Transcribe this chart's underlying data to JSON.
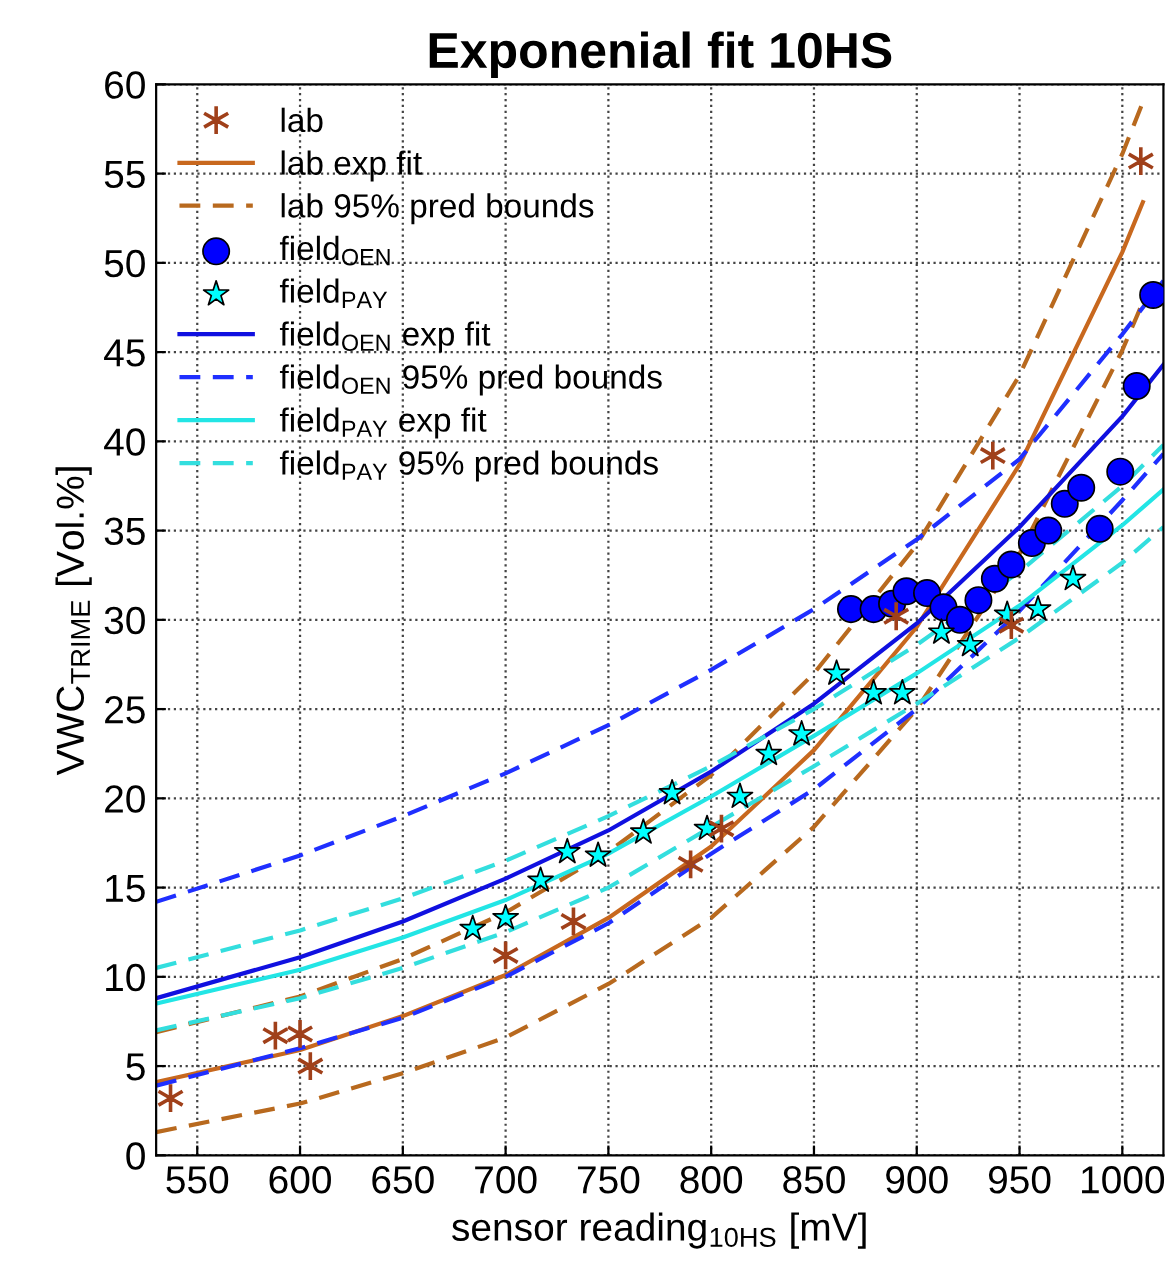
{
  "chart_data": {
    "type": "scatter",
    "title": "Exponenial fit 10HS",
    "xlabel": "sensor reading$_{10HS}$ [mV]",
    "ylabel": "VWC$_{TRIME}$ [Vol.%]",
    "xlim": [
      530,
      1020
    ],
    "xticks": [
      550,
      600,
      650,
      700,
      750,
      800,
      850,
      900,
      950,
      1000
    ],
    "ylim": [
      0,
      60
    ],
    "yticks": [
      0,
      5,
      10,
      15,
      20,
      25,
      30,
      35,
      40,
      45,
      50,
      55,
      60
    ],
    "grid": true,
    "legend": "top left",
    "series": [
      {
        "name": "lab",
        "type": "scatter",
        "marker": "cross",
        "color": "#a0401a",
        "x": [
          537,
          588,
          600,
          605,
          700,
          733,
          790,
          805,
          890,
          937,
          946,
          1009
        ],
        "values": [
          3.2,
          6.7,
          6.8,
          5.0,
          11.2,
          13.1,
          16.3,
          18.3,
          30.2,
          39.2,
          29.7,
          55.7
        ]
      },
      {
        "name": "lab exp fit",
        "type": "line",
        "line_style": "solid",
        "marker": "none",
        "color": "#c8681e",
        "x": [
          530,
          600,
          650,
          700,
          750,
          800,
          850,
          900,
          950,
          1000,
          1010
        ],
        "values": [
          4.1,
          5.9,
          7.8,
          10.1,
          13.3,
          17.3,
          22.7,
          29.6,
          38.7,
          50.6,
          53.4
        ]
      },
      {
        "name": "lab 95% pred bounds",
        "type": "line",
        "line_style": "dashed",
        "marker": "none",
        "color": "#b8691e",
        "x": [
          530,
          600,
          650,
          700,
          750,
          800,
          850,
          900,
          950,
          1000,
          1010
        ],
        "values": [
          6.9,
          8.9,
          11.0,
          13.6,
          17.0,
          21.3,
          27.0,
          34.2,
          43.7,
          56.1,
          59.0
        ]
      },
      {
        "type": "line",
        "line_style": "dashed",
        "marker": "none",
        "color": "#b8691e",
        "x": [
          530,
          600,
          650,
          700,
          750,
          800,
          850,
          900,
          950,
          1000,
          1010
        ],
        "values": [
          1.3,
          2.9,
          4.6,
          6.6,
          9.6,
          13.3,
          18.4,
          25.0,
          33.7,
          45.1,
          47.8
        ]
      },
      {
        "name": "field$_{OEN}$",
        "type": "scatter",
        "marker": "circle",
        "color": "#0000ff",
        "x": [
          868,
          879,
          888,
          895,
          905,
          913,
          921,
          930,
          938,
          946,
          956,
          964,
          972,
          980,
          989,
          999,
          1007,
          1015
        ],
        "values": [
          30.6,
          30.6,
          30.9,
          31.6,
          31.5,
          30.7,
          30.0,
          31.1,
          32.3,
          33.1,
          34.3,
          35.0,
          36.5,
          37.4,
          35.1,
          38.3,
          43.1,
          48.2
        ]
      },
      {
        "name": "field$_{PAY}$",
        "type": "scatter",
        "marker": "star",
        "color": "#00ffff",
        "x": [
          684,
          700,
          717,
          730,
          745,
          767,
          781,
          798,
          814,
          828,
          844,
          861,
          879,
          893,
          912,
          926,
          944,
          959,
          976
        ],
        "values": [
          12.7,
          13.3,
          15.4,
          17.0,
          16.8,
          18.1,
          20.3,
          18.3,
          20.1,
          22.5,
          23.6,
          27.0,
          25.9,
          25.9,
          29.3,
          28.6,
          30.3,
          30.6,
          32.3
        ]
      },
      {
        "name": "field$_{OEN}$ exp fit",
        "type": "line",
        "line_style": "solid",
        "marker": "none",
        "color": "#1010e0",
        "x": [
          530,
          600,
          650,
          700,
          750,
          800,
          850,
          900,
          950,
          1000,
          1020
        ],
        "values": [
          8.8,
          11.1,
          13.1,
          15.5,
          18.2,
          21.5,
          25.3,
          29.8,
          35.2,
          41.4,
          44.3
        ]
      },
      {
        "name": "field$_{OEN}$ 95% pred bounds",
        "type": "line",
        "line_style": "dashed",
        "marker": "none",
        "color": "#1f2fff",
        "x": [
          530,
          600,
          650,
          700,
          750,
          800,
          850,
          900,
          950,
          1000,
          1020
        ],
        "values": [
          14.2,
          16.8,
          19.0,
          21.4,
          24.1,
          27.2,
          30.6,
          34.5,
          39.0,
          46.0,
          49.0
        ]
      },
      {
        "type": "line",
        "line_style": "dashed",
        "marker": "none",
        "color": "#1f2fff",
        "x": [
          530,
          600,
          650,
          700,
          750,
          800,
          850,
          900,
          950,
          1000,
          1020
        ],
        "values": [
          3.9,
          6.0,
          7.7,
          10.0,
          13.0,
          16.9,
          20.5,
          25.0,
          30.5,
          36.7,
          39.3
        ]
      },
      {
        "name": "field$_{PAY}$ exp fit",
        "type": "line",
        "line_style": "solid",
        "marker": "none",
        "color": "#22e5e5",
        "x": [
          530,
          600,
          650,
          700,
          750,
          800,
          850,
          900,
          950,
          1000,
          1020
        ],
        "values": [
          8.5,
          10.4,
          12.2,
          14.3,
          16.9,
          20.1,
          23.5,
          27.0,
          30.8,
          35.3,
          37.3
        ]
      },
      {
        "name": "field$_{PAY}$ 95% pred bounds",
        "type": "line",
        "line_style": "dashed",
        "marker": "none",
        "color": "#33dede",
        "x": [
          530,
          600,
          650,
          700,
          750,
          800,
          850,
          900,
          950,
          1000,
          1020
        ],
        "values": [
          10.5,
          12.6,
          14.4,
          16.5,
          19.0,
          21.8,
          25.0,
          28.6,
          32.7,
          37.5,
          39.8
        ]
      },
      {
        "type": "line",
        "line_style": "dashed",
        "marker": "none",
        "color": "#33dede",
        "x": [
          530,
          600,
          650,
          700,
          750,
          800,
          850,
          900,
          950,
          1000,
          1020
        ],
        "values": [
          7.0,
          8.8,
          10.5,
          12.5,
          15.0,
          18.4,
          21.8,
          25.3,
          29.0,
          33.2,
          35.2
        ]
      }
    ]
  }
}
